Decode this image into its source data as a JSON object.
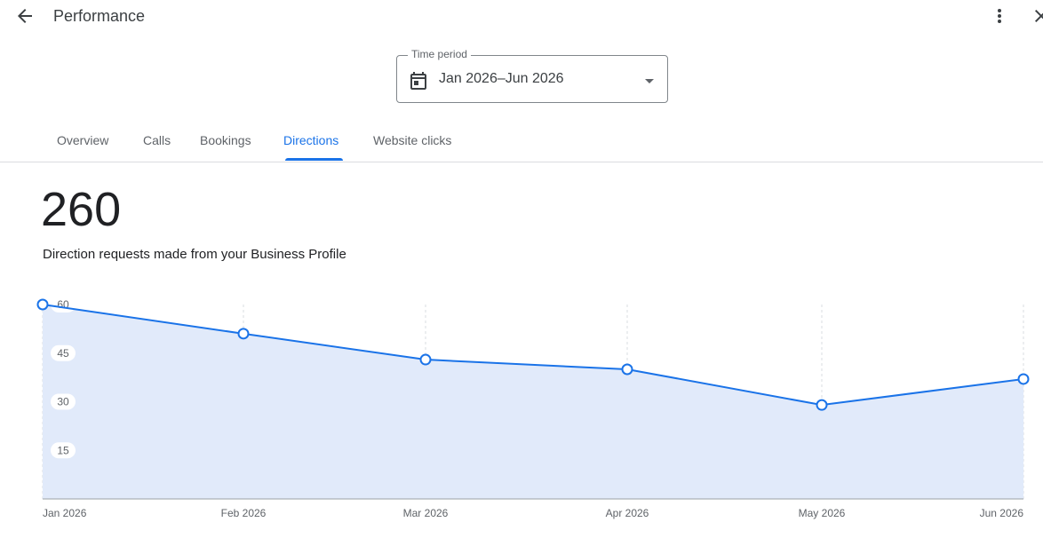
{
  "header": {
    "title": "Performance"
  },
  "icons": {
    "back": "arrow-back-icon",
    "more": "more-vert-icon",
    "close": "close-icon",
    "calendar": "calendar-icon",
    "dropdown": "arrow-drop-down-icon"
  },
  "time_period": {
    "label": "Time period",
    "value": "Jan 2026–Jun 2026"
  },
  "tabs": [
    {
      "label": "Overview"
    },
    {
      "label": "Calls"
    },
    {
      "label": "Bookings"
    },
    {
      "label": "Directions",
      "active": true
    },
    {
      "label": "Website clicks"
    }
  ],
  "metric": {
    "value": "260",
    "description": "Direction requests made from your Business Profile"
  },
  "colors": {
    "accent": "#1a73e8",
    "area_fill": "#e1eafa"
  },
  "chart_data": {
    "type": "area",
    "categories": [
      "Jan 2026",
      "Feb 2026",
      "Mar 2026",
      "Apr 2026",
      "May 2026",
      "Jun 2026"
    ],
    "values": [
      60,
      51,
      43,
      40,
      29,
      37
    ],
    "y_ticks": [
      "60",
      "45",
      "30",
      "15"
    ],
    "ylim": [
      0,
      60
    ],
    "grid": "vertical dashed",
    "xlabel": "",
    "ylabel": ""
  }
}
